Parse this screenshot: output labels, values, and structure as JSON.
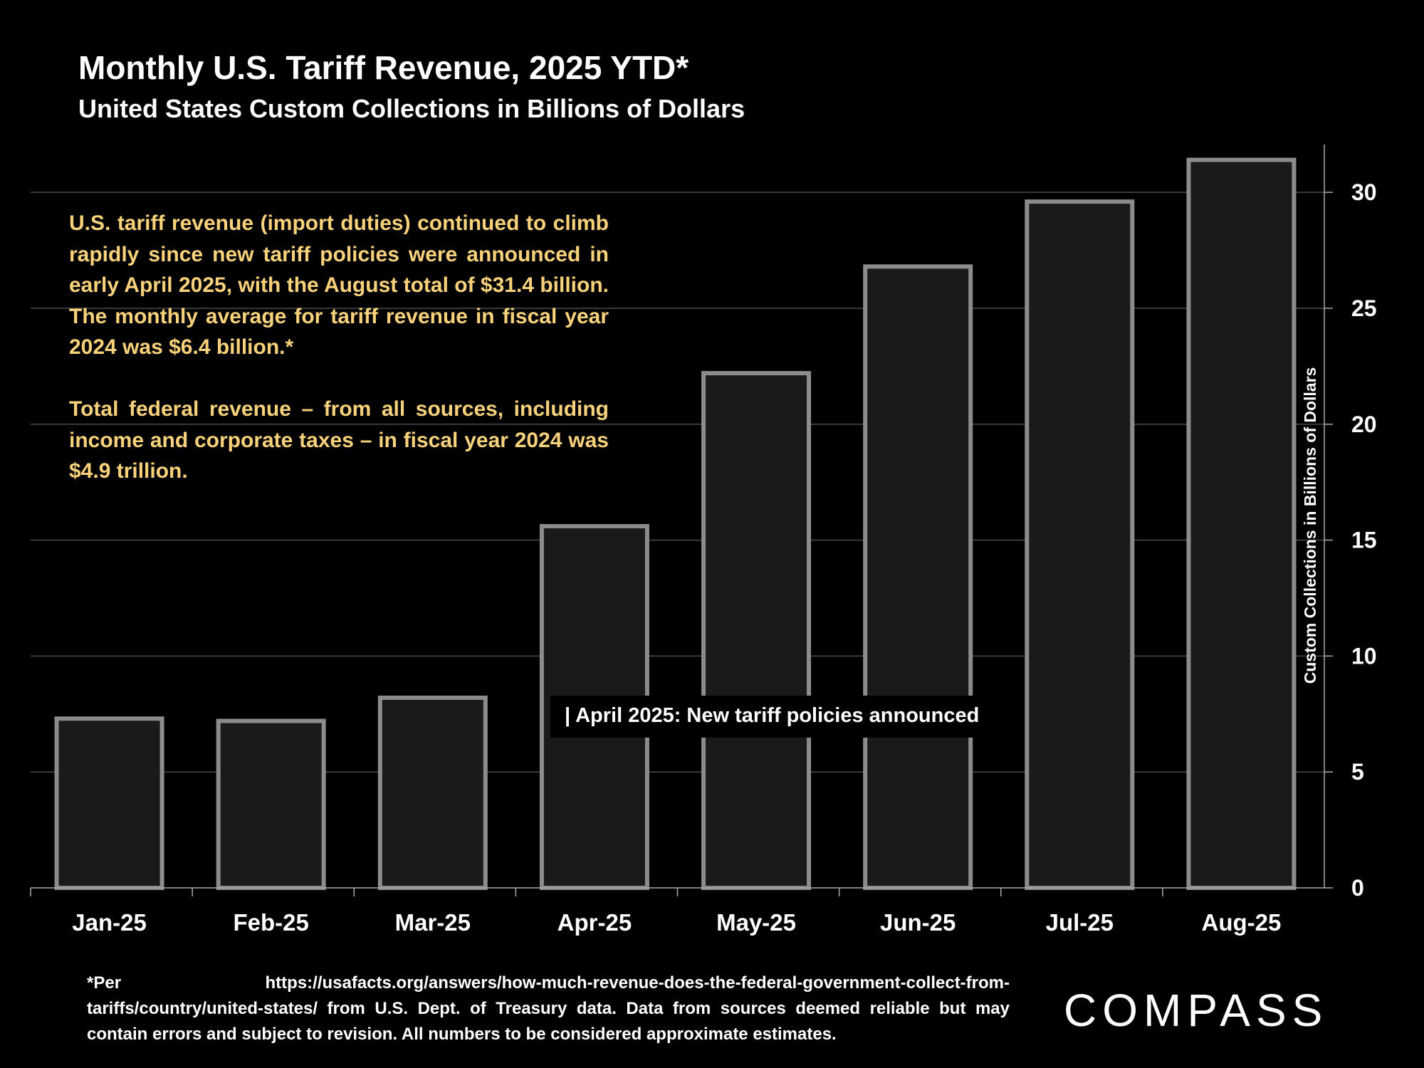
{
  "colors": {
    "background": "#000000",
    "bar_fill": "#1a1a1a",
    "bar_stroke": "#8c8c8c",
    "gridline": "#4a4a4a",
    "annotation_text": "#f7d27b",
    "text": "#ffffff"
  },
  "chart_data": {
    "type": "bar",
    "title": "Monthly U.S. Tariff Revenue, 2025 YTD*",
    "subtitle": "United States Custom Collections in Billions of Dollars",
    "categories": [
      "Jan-25",
      "Feb-25",
      "Mar-25",
      "Apr-25",
      "May-25",
      "Jun-25",
      "Jul-25",
      "Aug-25"
    ],
    "values": [
      7.3,
      7.2,
      8.2,
      15.6,
      22.2,
      26.8,
      29.6,
      31.4
    ],
    "ylabel": "Custom Collections in Billions of Dollars",
    "ylim": [
      0,
      32
    ],
    "yticks": [
      0,
      5,
      10,
      15,
      20,
      25,
      30
    ],
    "y_axis_side": "right",
    "grid": true,
    "legend": "none"
  },
  "annotation": {
    "paragraph1": "U.S. tariff revenue (import duties) continued to climb rapidly since new tariff policies were announced in early April 2025, with the August total of $31.4 billion. The monthly average for tariff revenue in fiscal year 2024 was $6.4 billion.*",
    "paragraph2": "Total federal revenue – from all sources, including income and corporate taxes – in fiscal year 2024 was $4.9 trillion."
  },
  "callout": {
    "text": "| April 2025:  New tariff policies announced"
  },
  "footnote": {
    "text": "*Per https://usafacts.org/answers/how-much-revenue-does-the-federal-government-collect-from-tariffs/country/united-states/ from U.S. Dept. of Treasury data. Data from sources deemed reliable but may contain errors and subject to revision. All numbers to be considered approximate estimates."
  },
  "logo": {
    "text": "COMPASS"
  }
}
